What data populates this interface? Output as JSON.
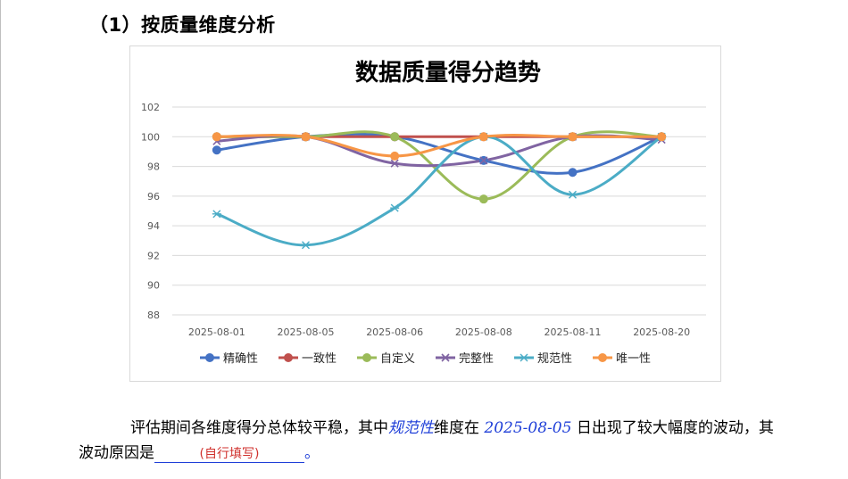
{
  "heading": "（1）按质量维度分析",
  "chart_data": {
    "type": "line",
    "title": "数据质量得分趋势",
    "categories": [
      "2025-08-01",
      "2025-08-05",
      "2025-08-06",
      "2025-08-08",
      "2025-08-11",
      "2025-08-20"
    ],
    "ylim": [
      88,
      102
    ],
    "yticks": [
      88,
      90,
      92,
      94,
      96,
      98,
      100,
      102
    ],
    "grid": true,
    "smooth": true,
    "legend_position": "bottom",
    "series": [
      {
        "name": "精确性",
        "color": "#4472c4",
        "marker": "circle",
        "values": [
          99.1,
          100,
          100,
          98.4,
          97.6,
          100
        ]
      },
      {
        "name": "一致性",
        "color": "#c0504d",
        "marker": "circle",
        "values": [
          100,
          100,
          100,
          100,
          100,
          100
        ]
      },
      {
        "name": "自定义",
        "color": "#9bbb59",
        "marker": "circle",
        "values": [
          100,
          100,
          100,
          95.8,
          100,
          100
        ]
      },
      {
        "name": "完整性",
        "color": "#8064a2",
        "marker": "x",
        "values": [
          99.7,
          100,
          98.2,
          98.4,
          100,
          99.8
        ]
      },
      {
        "name": "规范性",
        "color": "#4bacc6",
        "marker": "star",
        "values": [
          94.8,
          92.7,
          95.2,
          100,
          96.1,
          100
        ]
      },
      {
        "name": "唯一性",
        "color": "#f79646",
        "marker": "circle",
        "values": [
          100,
          100,
          98.7,
          100,
          100,
          100
        ]
      }
    ]
  },
  "paragraph": {
    "part1": "评估期间各维度得分总体较平稳，其中",
    "dimension": "规范性",
    "part2": "维度在",
    "date": "2025-08-05",
    "part3": "日出现了较大幅度的波动，其波动原因是",
    "blank_hint": "(自行填写)",
    "end": "。"
  }
}
